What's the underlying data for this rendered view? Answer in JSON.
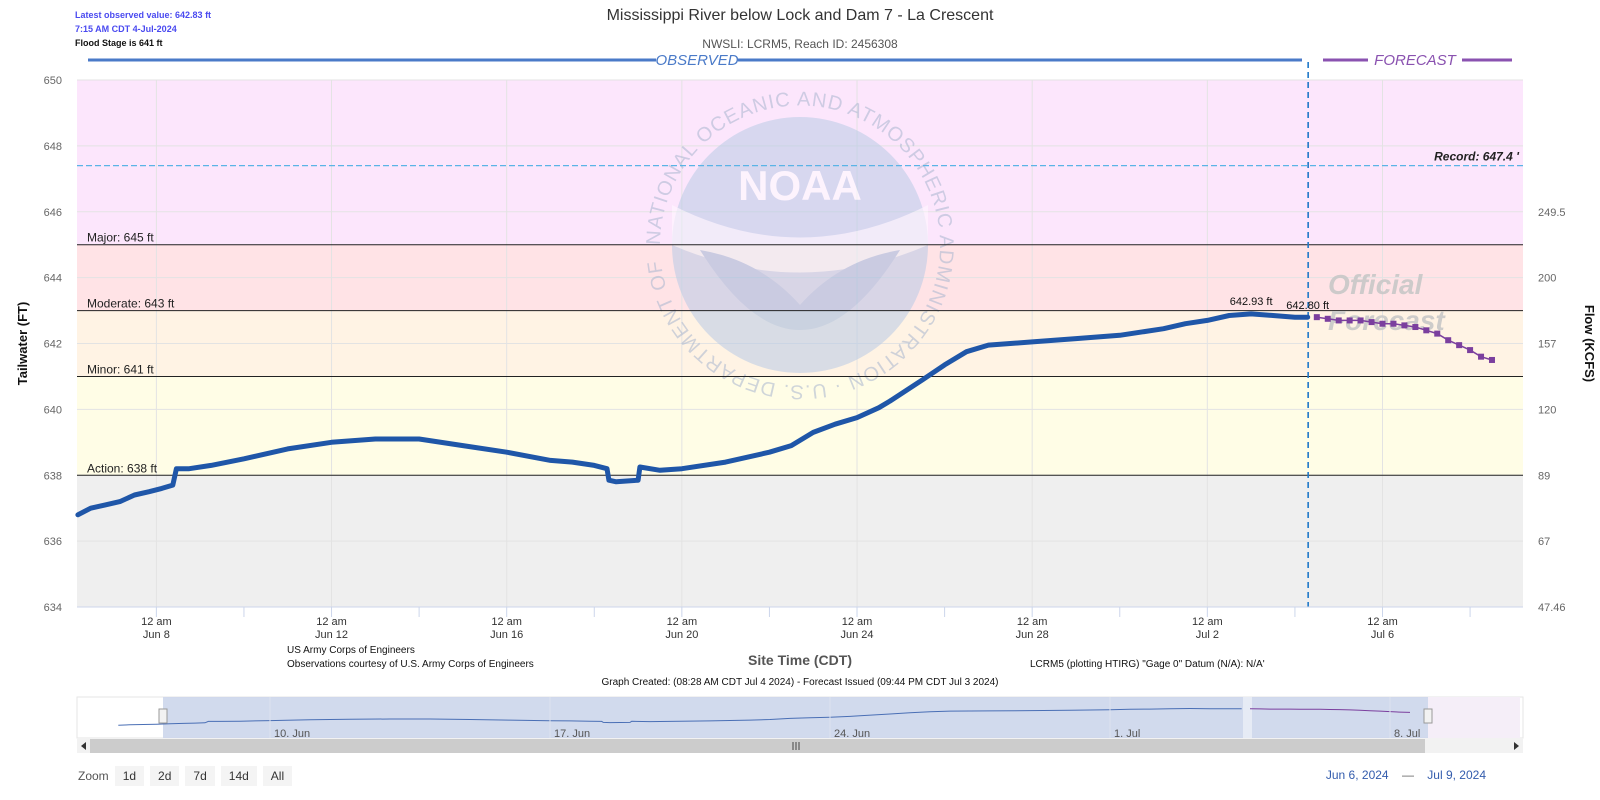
{
  "header": {
    "latest_value": "Latest observed value: 642.83 ft",
    "latest_time": "7:15 AM CDT 4-Jul-2024",
    "flood_stage": "Flood Stage is 641 ft",
    "title": "Mississippi River below Lock and Dam 7 - La Crescent",
    "subtitle": "NWSLI: LCRM5, Reach ID: 2456308"
  },
  "chart_data": {
    "type": "line",
    "title": "Mississippi River below Lock and Dam 7 - La Crescent",
    "subtitle": "NWSLI: LCRM5, Reach ID: 2456308",
    "xlabel": "Site Time (CDT)",
    "ylabel": "Tailwater (FT)",
    "y2label": "Flow (KCFS)",
    "xlim": [
      "2024-06-06T04:30",
      "2024-07-09T05:00"
    ],
    "ylim": [
      634,
      650
    ],
    "y_ticks": [
      634,
      636,
      638,
      640,
      642,
      644,
      646,
      648,
      650
    ],
    "y2_ticks": [
      {
        "stage": 634,
        "label": "47.46"
      },
      {
        "stage": 636,
        "label": "67"
      },
      {
        "stage": 638,
        "label": "89"
      },
      {
        "stage": 640,
        "label": "120"
      },
      {
        "stage": 642,
        "label": "157"
      },
      {
        "stage": 644,
        "label": "200"
      },
      {
        "stage": 646,
        "label": "249.5"
      }
    ],
    "x_ticks": [
      {
        "t": "2024-06-08T00:00",
        "line1": "12 am",
        "line2": "Jun 8"
      },
      {
        "t": "2024-06-12T00:00",
        "line1": "12 am",
        "line2": "Jun 12"
      },
      {
        "t": "2024-06-16T00:00",
        "line1": "12 am",
        "line2": "Jun 16"
      },
      {
        "t": "2024-06-20T00:00",
        "line1": "12 am",
        "line2": "Jun 20"
      },
      {
        "t": "2024-06-24T00:00",
        "line1": "12 am",
        "line2": "Jun 24"
      },
      {
        "t": "2024-06-28T00:00",
        "line1": "12 am",
        "line2": "Jun 28"
      },
      {
        "t": "2024-07-02T00:00",
        "line1": "12 am",
        "line2": "Jul 2"
      },
      {
        "t": "2024-07-06T00:00",
        "line1": "12 am",
        "line2": "Jul 6"
      }
    ],
    "bands": [
      {
        "name": "action",
        "from": 638,
        "to": 641,
        "color": "#fffde6"
      },
      {
        "name": "minor",
        "from": 641,
        "to": 643,
        "color": "#fff3e4"
      },
      {
        "name": "moderate",
        "from": 643,
        "to": 645,
        "color": "#ffe3e6"
      },
      {
        "name": "major",
        "from": 645,
        "to": 650,
        "color": "#fce6fc"
      },
      {
        "name": "below",
        "from": 634,
        "to": 638,
        "color": "#efefef"
      }
    ],
    "thresholds": [
      {
        "label": "Action: 638 ft",
        "value": 638
      },
      {
        "label": "Minor: 641 ft",
        "value": 641
      },
      {
        "label": "Moderate: 643 ft",
        "value": 643
      },
      {
        "label": "Major: 645 ft",
        "value": 645
      }
    ],
    "record": {
      "label": "Record: 647.4 '",
      "value": 647.4
    },
    "observed_label": "OBSERVED",
    "forecast_label": "FORECAST",
    "official_forecast": [
      "Official",
      "Forecast"
    ],
    "forecast_issue_time": "2024-07-04T07:15",
    "series": [
      {
        "name": "Observed",
        "color": "#1f56a8",
        "points": [
          [
            "2024-06-06T05:00",
            636.8
          ],
          [
            "2024-06-06T12:00",
            637.0
          ],
          [
            "2024-06-06T20:00",
            637.1
          ],
          [
            "2024-06-07T04:00",
            637.2
          ],
          [
            "2024-06-07T12:00",
            637.4
          ],
          [
            "2024-06-07T20:00",
            637.5
          ],
          [
            "2024-06-08T03:00",
            637.6
          ],
          [
            "2024-06-08T09:00",
            637.7
          ],
          [
            "2024-06-08T11:00",
            638.2
          ],
          [
            "2024-06-08T18:00",
            638.2
          ],
          [
            "2024-06-09T06:00",
            638.3
          ],
          [
            "2024-06-10T00:00",
            638.5
          ],
          [
            "2024-06-11T00:00",
            638.8
          ],
          [
            "2024-06-12T00:00",
            639.0
          ],
          [
            "2024-06-13T00:00",
            639.1
          ],
          [
            "2024-06-13T12:00",
            639.1
          ],
          [
            "2024-06-14T00:00",
            639.1
          ],
          [
            "2024-06-15T00:00",
            638.9
          ],
          [
            "2024-06-16T00:00",
            638.7
          ],
          [
            "2024-06-17T00:00",
            638.45
          ],
          [
            "2024-06-17T12:00",
            638.4
          ],
          [
            "2024-06-18T00:00",
            638.3
          ],
          [
            "2024-06-18T07:00",
            638.2
          ],
          [
            "2024-06-18T08:00",
            637.85
          ],
          [
            "2024-06-18T12:00",
            637.8
          ],
          [
            "2024-06-19T00:00",
            637.85
          ],
          [
            "2024-06-19T01:00",
            638.25
          ],
          [
            "2024-06-19T12:00",
            638.15
          ],
          [
            "2024-06-20T00:00",
            638.2
          ],
          [
            "2024-06-21T00:00",
            638.4
          ],
          [
            "2024-06-22T00:00",
            638.7
          ],
          [
            "2024-06-22T12:00",
            638.9
          ],
          [
            "2024-06-23T00:00",
            639.3
          ],
          [
            "2024-06-23T12:00",
            639.55
          ],
          [
            "2024-06-24T00:00",
            639.75
          ],
          [
            "2024-06-24T12:00",
            640.05
          ],
          [
            "2024-06-24T18:00",
            640.25
          ],
          [
            "2024-06-25T12:00",
            640.9
          ],
          [
            "2024-06-26T00:00",
            641.35
          ],
          [
            "2024-06-26T12:00",
            641.75
          ],
          [
            "2024-06-27T00:00",
            641.95
          ],
          [
            "2024-06-27T12:00",
            642.0
          ],
          [
            "2024-06-28T00:00",
            642.05
          ],
          [
            "2024-06-29T00:00",
            642.15
          ],
          [
            "2024-06-30T00:00",
            642.25
          ],
          [
            "2024-07-01T00:00",
            642.45
          ],
          [
            "2024-07-01T12:00",
            642.6
          ],
          [
            "2024-07-02T00:00",
            642.7
          ],
          [
            "2024-07-02T12:00",
            642.85
          ],
          [
            "2024-07-03T00:00",
            642.9
          ],
          [
            "2024-07-03T12:00",
            642.85
          ],
          [
            "2024-07-04T00:00",
            642.8
          ],
          [
            "2024-07-04T07:00",
            642.8
          ]
        ]
      },
      {
        "name": "Forecast",
        "color": "#7b3f9e",
        "points": [
          [
            "2024-07-04T12:00",
            642.8
          ],
          [
            "2024-07-04T18:00",
            642.75
          ],
          [
            "2024-07-05T00:00",
            642.7
          ],
          [
            "2024-07-05T06:00",
            642.7
          ],
          [
            "2024-07-05T12:00",
            642.7
          ],
          [
            "2024-07-05T18:00",
            642.65
          ],
          [
            "2024-07-06T00:00",
            642.6
          ],
          [
            "2024-07-06T06:00",
            642.6
          ],
          [
            "2024-07-06T12:00",
            642.55
          ],
          [
            "2024-07-06T18:00",
            642.5
          ],
          [
            "2024-07-07T00:00",
            642.4
          ],
          [
            "2024-07-07T06:00",
            642.3
          ],
          [
            "2024-07-07T12:00",
            642.1
          ],
          [
            "2024-07-07T18:00",
            641.95
          ],
          [
            "2024-07-08T00:00",
            641.8
          ],
          [
            "2024-07-08T06:00",
            641.6
          ],
          [
            "2024-07-08T12:00",
            641.5
          ]
        ]
      }
    ],
    "annotations": [
      {
        "text": "642.93 ft",
        "t": "2024-07-03T00:00",
        "value": 642.93
      },
      {
        "text": "642.80 ft",
        "t": "2024-07-04T07:00",
        "value": 642.8
      }
    ],
    "footer": {
      "credit1": "US Army Corps of Engineers",
      "credit2": "Observations courtesy of U.S. Army Corps of Engineers",
      "datum": "LCRM5 (plotting HTIRG) \"Gage 0\" Datum (N/A): N/A'",
      "created": "Graph Created: (08:28 AM CDT Jul 4 2024) - Forecast Issued (09:44 PM CDT Jul 3 2024)"
    },
    "navigator": {
      "labels": [
        {
          "t": "2024-06-10T00:00",
          "text": "10. Jun"
        },
        {
          "t": "2024-06-17T00:00",
          "text": "17. Jun"
        },
        {
          "t": "2024-06-24T00:00",
          "text": "24. Jun"
        },
        {
          "t": "2024-07-01T00:00",
          "text": "1. Jul"
        },
        {
          "t": "2024-07-08T00:00",
          "text": "8. Jul"
        }
      ]
    }
  },
  "watermark": {
    "logo_text": "NOAA",
    "ring_text": "NATIONAL OCEANIC AND ATMOSPHERIC ADMINISTRATION · U.S. DEPARTMENT OF COMMERCE"
  },
  "controls": {
    "zoom_label": "Zoom",
    "buttons": [
      "1d",
      "2d",
      "7d",
      "14d",
      "All"
    ],
    "range_from": "Jun 6, 2024",
    "range_sep": "—",
    "range_to": "Jul 9, 2024"
  },
  "colors": {
    "observed": "#1f56a8",
    "forecast": "#7b3f9e",
    "record": "#5ab4e6",
    "axis_text": "#666666"
  }
}
